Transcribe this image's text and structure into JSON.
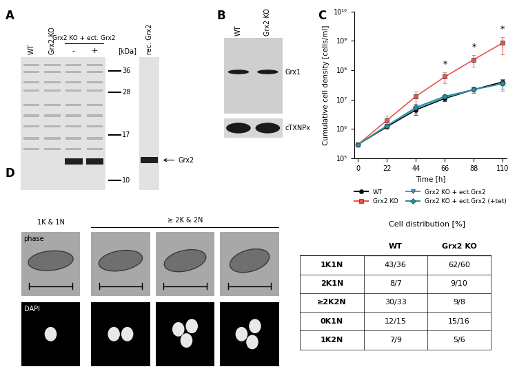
{
  "panel_labels": [
    "A",
    "B",
    "C",
    "D"
  ],
  "panel_A": {
    "lanes": [
      "WT",
      "Grx2 KO"
    ],
    "lane_group": "Grx2 KO + ect. Grx2",
    "group_lanes": [
      "-",
      "+"
    ],
    "reference_lane": "rec. Grx2",
    "marker_unit": "[kDa]",
    "markers": [
      36,
      28,
      17,
      10
    ],
    "band_label": "Grx2"
  },
  "panel_B": {
    "lanes": [
      "WT",
      "Grx2 KO"
    ],
    "rows": [
      "Grx1",
      "cTXNPx"
    ]
  },
  "chart_data": {
    "type": "line",
    "xlabel": "Time [h]",
    "ylabel": "Cumulative cell density [cells/ml]",
    "x": [
      0,
      22,
      44,
      66,
      88,
      110
    ],
    "xlim": [
      -3,
      113
    ],
    "xticks": [
      0,
      22,
      44,
      66,
      88,
      110
    ],
    "log": "y",
    "ylim": [
      100000,
      10000000000
    ],
    "yticks": [
      {
        "value": 100000,
        "label": "10⁵"
      },
      {
        "value": 1000000,
        "label": "10⁶"
      },
      {
        "value": 10000000,
        "label": "10⁷"
      },
      {
        "value": 100000000,
        "label": "10⁸"
      },
      {
        "value": 1000000000,
        "label": "10⁹"
      },
      {
        "value": 10000000000,
        "label": "10¹⁰"
      }
    ],
    "grid": false,
    "legend": "upper center",
    "series": [
      {
        "name": "WT",
        "color": "#000000",
        "marker": "circle",
        "line_style": "solid",
        "values": [
          300000,
          1200000,
          4500000,
          11000000,
          22000000,
          40000000
        ],
        "errors": [
          0,
          200000,
          1500000,
          2000000,
          5000000,
          10000000
        ]
      },
      {
        "name": "Grx2 KO",
        "color": "#e8554e",
        "marker": "square",
        "line_style": "solid",
        "values": [
          300000,
          2000000,
          13000000,
          60000000,
          230000000,
          850000000
        ],
        "errors": [
          0,
          800000,
          6000000,
          25000000,
          100000000,
          500000000
        ]
      },
      {
        "name": "Grx2 KO + ect.Grx2",
        "color": "#3ba3c7",
        "marker": "triangle_down",
        "line_style": "solid",
        "values": [
          300000,
          1300000,
          5000000,
          12000000,
          22000000,
          35000000
        ],
        "errors": [
          0,
          200000,
          1500000,
          2500000,
          5000000,
          15000000
        ]
      },
      {
        "name": "Grx2 KO + ect.Grx2 (+tet)",
        "color": "#2b8fa0",
        "marker": "diamond",
        "line_style": "solid",
        "values": [
          300000,
          1300000,
          5500000,
          13000000,
          22000000,
          35000000
        ],
        "errors": [
          0,
          200000,
          1500000,
          2500000,
          5000000,
          12000000
        ]
      }
    ],
    "annotations": [
      {
        "x": 66,
        "text": "*"
      },
      {
        "x": 88,
        "text": "*"
      },
      {
        "x": 110,
        "text": "*"
      }
    ]
  },
  "panel_D": {
    "groups": [
      "1K & 1N",
      "≥ 2K & 2N"
    ],
    "rows": [
      "phase",
      "DAPI"
    ],
    "table": {
      "title": "Cell distribution [%]",
      "columns": [
        "WT",
        "Grx2 KO"
      ],
      "rows": [
        [
          "1K1N",
          "43/36",
          "62/60"
        ],
        [
          "2K1N",
          "8/7",
          "9/10"
        ],
        [
          "≥2K2N",
          "30/33",
          "9/8"
        ],
        [
          "0K1N",
          "12/15",
          "15/16"
        ],
        [
          "1K2N",
          "7/9",
          "5/6"
        ]
      ]
    }
  }
}
